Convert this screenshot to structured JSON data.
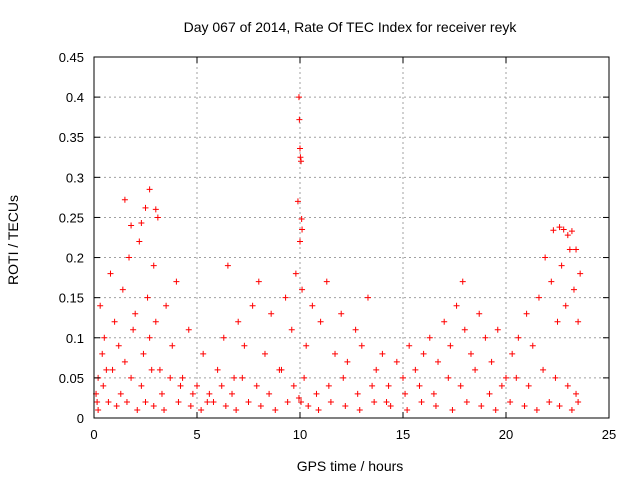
{
  "chart_data": {
    "type": "scatter",
    "title": "Day 067 of 2014, Rate Of TEC Index for receiver reyk",
    "xlabel": "GPS time / hours",
    "ylabel": "ROTI / TECUs",
    "xlim": [
      0,
      25
    ],
    "ylim": [
      0,
      0.45
    ],
    "grid": true,
    "marker": "+",
    "marker_color": "#ff0000",
    "x_ticks": [
      0,
      5,
      10,
      15,
      20,
      25
    ],
    "x_tick_labels": [
      "0",
      "5",
      "10",
      "15",
      "20",
      "25"
    ],
    "y_ticks": [
      0,
      0.05,
      0.1,
      0.15,
      0.2,
      0.25,
      0.3,
      0.35,
      0.4,
      0.45
    ],
    "y_tick_labels": [
      "0",
      "0.05",
      "0.1",
      "0.15",
      "0.2",
      "0.25",
      "0.3",
      "0.35",
      "0.4",
      "0.45"
    ],
    "series": [
      {
        "name": "ROTI",
        "x": [
          0.1,
          0.2,
          0.3,
          0.4,
          0.5,
          0.6,
          0.8,
          1.0,
          1.2,
          1.4,
          1.5,
          1.7,
          1.9,
          2.0,
          2.2,
          2.4,
          2.6,
          2.7,
          2.9,
          3.0,
          3.2,
          3.5,
          3.8,
          4.0,
          4.3,
          4.6,
          5.0,
          5.3,
          5.6,
          6.0,
          6.3,
          6.5,
          6.8,
          7.0,
          7.3,
          7.7,
          8.0,
          8.3,
          8.6,
          9.0,
          9.3,
          9.6,
          9.8,
          9.9,
          10.0,
          10.1,
          10.3,
          10.6,
          11.0,
          11.3,
          11.7,
          12.0,
          12.3,
          12.7,
          13.0,
          13.3,
          13.7,
          14.0,
          14.3,
          14.7,
          15.0,
          15.3,
          15.6,
          16.0,
          16.3,
          16.7,
          17.0,
          17.3,
          17.6,
          17.9,
          18.0,
          18.3,
          18.7,
          19.0,
          19.3,
          19.6,
          20.0,
          20.3,
          20.6,
          21.0,
          21.3,
          21.6,
          21.9,
          22.2,
          22.5,
          22.7,
          22.9,
          23.1,
          23.3,
          23.5,
          23.6,
          0.15,
          0.45,
          0.9,
          1.3,
          1.8,
          2.3,
          2.8,
          3.3,
          3.7,
          4.2,
          4.8,
          5.5,
          6.2,
          6.7,
          7.2,
          7.9,
          8.5,
          9.1,
          9.7,
          10.2,
          10.8,
          11.4,
          12.1,
          12.8,
          13.5,
          14.2,
          15.1,
          15.8,
          16.5,
          17.2,
          17.8,
          18.5,
          19.2,
          19.8,
          20.5,
          21.1,
          21.8,
          22.4,
          23.0,
          23.4,
          0.2,
          0.7,
          1.1,
          1.6,
          2.1,
          2.5,
          2.9,
          3.4,
          4.1,
          4.7,
          5.2,
          5.8,
          6.4,
          6.9,
          7.5,
          8.1,
          8.8,
          9.4,
          9.95,
          10.05,
          10.4,
          10.9,
          11.5,
          12.2,
          12.9,
          13.6,
          14.4,
          15.2,
          15.9,
          16.6,
          17.4,
          18.1,
          18.8,
          19.5,
          20.2,
          20.9,
          21.5,
          22.1,
          22.6,
          23.2,
          23.5,
          9.95,
          9.97,
          10.0,
          10.02,
          10.05,
          10.08,
          10.1,
          1.5,
          1.8,
          2.3,
          2.5,
          2.7,
          3.0,
          3.1,
          22.3,
          22.6,
          22.8,
          23.0,
          23.2,
          23.4
        ],
        "y": [
          0.03,
          0.05,
          0.14,
          0.08,
          0.1,
          0.06,
          0.18,
          0.12,
          0.09,
          0.16,
          0.07,
          0.2,
          0.11,
          0.13,
          0.22,
          0.08,
          0.15,
          0.1,
          0.19,
          0.12,
          0.06,
          0.14,
          0.09,
          0.17,
          0.05,
          0.11,
          0.04,
          0.08,
          0.03,
          0.06,
          0.1,
          0.19,
          0.05,
          0.12,
          0.09,
          0.14,
          0.17,
          0.08,
          0.13,
          0.06,
          0.15,
          0.11,
          0.18,
          0.27,
          0.22,
          0.16,
          0.09,
          0.14,
          0.12,
          0.17,
          0.08,
          0.13,
          0.07,
          0.11,
          0.09,
          0.15,
          0.06,
          0.08,
          0.04,
          0.07,
          0.05,
          0.09,
          0.06,
          0.08,
          0.1,
          0.07,
          0.12,
          0.09,
          0.14,
          0.17,
          0.11,
          0.08,
          0.13,
          0.1,
          0.07,
          0.11,
          0.05,
          0.08,
          0.1,
          0.13,
          0.09,
          0.15,
          0.2,
          0.17,
          0.12,
          0.19,
          0.14,
          0.21,
          0.16,
          0.12,
          0.18,
          0.02,
          0.04,
          0.06,
          0.03,
          0.05,
          0.04,
          0.06,
          0.03,
          0.05,
          0.04,
          0.03,
          0.02,
          0.04,
          0.03,
          0.05,
          0.04,
          0.03,
          0.06,
          0.04,
          0.05,
          0.03,
          0.04,
          0.05,
          0.03,
          0.04,
          0.02,
          0.03,
          0.04,
          0.03,
          0.05,
          0.04,
          0.06,
          0.03,
          0.04,
          0.05,
          0.04,
          0.06,
          0.05,
          0.04,
          0.03,
          0.01,
          0.02,
          0.015,
          0.02,
          0.01,
          0.02,
          0.015,
          0.01,
          0.02,
          0.015,
          0.01,
          0.02,
          0.015,
          0.01,
          0.02,
          0.015,
          0.01,
          0.02,
          0.025,
          0.02,
          0.015,
          0.01,
          0.02,
          0.015,
          0.01,
          0.02,
          0.015,
          0.01,
          0.02,
          0.015,
          0.01,
          0.02,
          0.015,
          0.01,
          0.02,
          0.015,
          0.01,
          0.02,
          0.015,
          0.01,
          0.02,
          0.4,
          0.372,
          0.336,
          0.325,
          0.32,
          0.248,
          0.235,
          0.272,
          0.24,
          0.243,
          0.262,
          0.285,
          0.26,
          0.25,
          0.234,
          0.238,
          0.235,
          0.228,
          0.233,
          0.21
        ]
      }
    ]
  }
}
